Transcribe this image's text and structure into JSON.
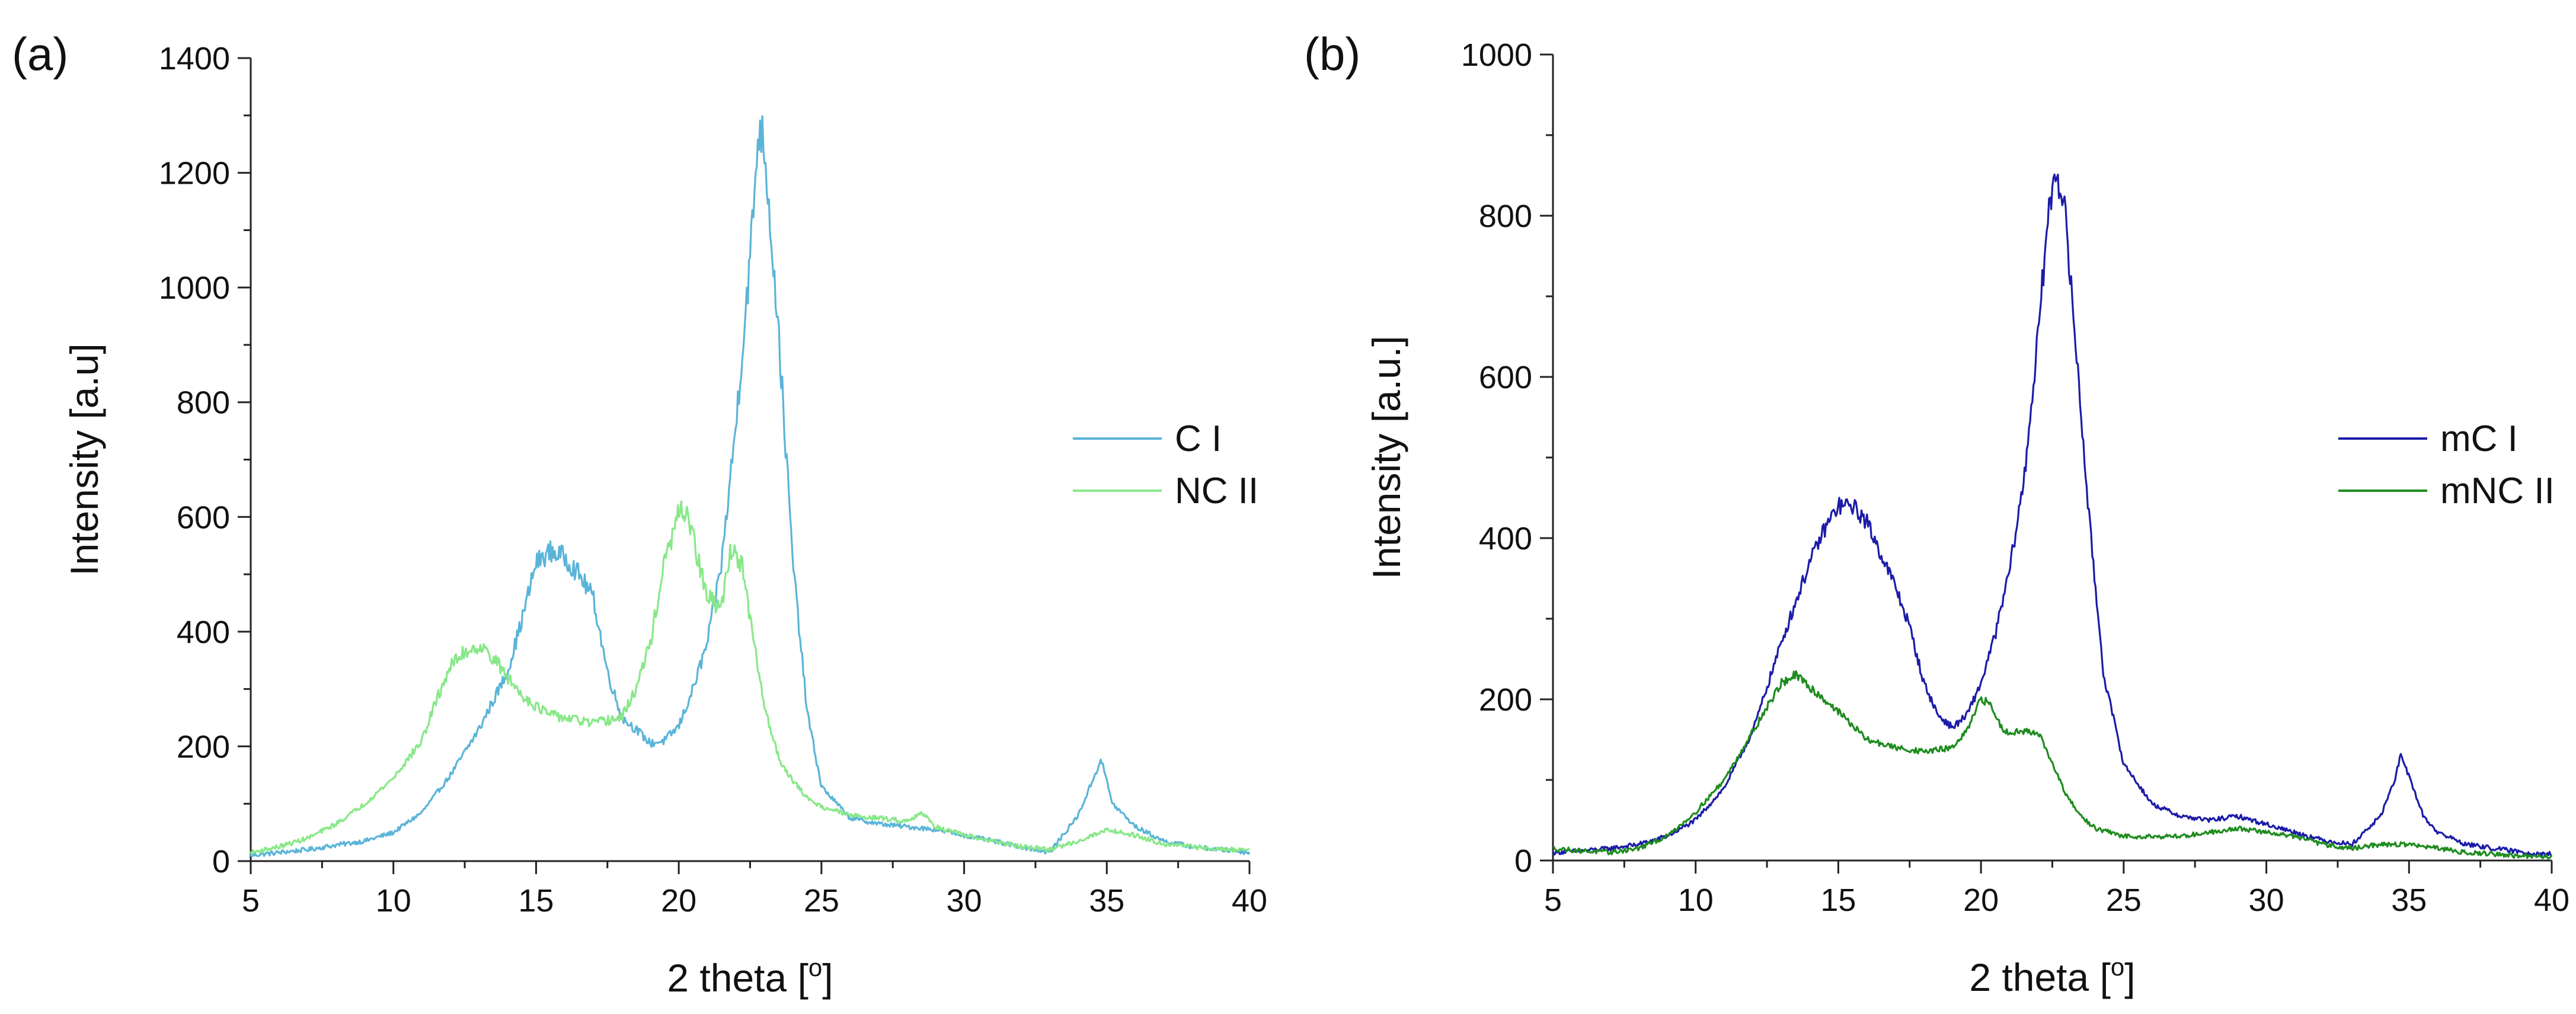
{
  "chart_data": [
    {
      "panel": "(a)",
      "type": "line",
      "xlabel": "2 theta [",
      "xlabel_sup": "o",
      "xlabel_end": "]",
      "ylabel": "Intensity [a.u]",
      "xlim": [
        5,
        40
      ],
      "ylim": [
        0,
        1400
      ],
      "xticks": [
        5,
        10,
        15,
        20,
        25,
        30,
        35,
        40
      ],
      "yticks": [
        0,
        200,
        400,
        600,
        800,
        1000,
        1200,
        1400
      ],
      "legend": "right",
      "series": [
        {
          "name": "C I",
          "color": "#5ab4d8",
          "x": [
            5,
            6,
            7,
            8,
            9,
            10,
            11,
            12,
            13,
            14,
            14.5,
            15,
            15.5,
            16,
            16.5,
            17,
            17.5,
            18,
            18.5,
            19,
            19.5,
            20,
            20.5,
            21,
            21.5,
            22,
            22.5,
            22.8,
            23,
            23.5,
            24,
            24.5,
            25,
            26,
            27,
            28,
            29,
            30,
            31,
            32,
            33,
            34,
            34.5,
            34.8,
            35.2,
            36,
            37,
            38,
            39,
            40
          ],
          "y": [
            10,
            15,
            20,
            28,
            35,
            50,
            85,
            150,
            230,
            330,
            420,
            520,
            540,
            530,
            500,
            460,
            330,
            250,
            230,
            205,
            210,
            235,
            300,
            380,
            520,
            760,
            1050,
            1280,
            1250,
            920,
            520,
            260,
            130,
            75,
            65,
            60,
            55,
            45,
            35,
            25,
            15,
            80,
            140,
            178,
            100,
            60,
            35,
            25,
            20,
            15
          ]
        },
        {
          "name": "NC II",
          "color": "#88e888",
          "x": [
            5,
            6,
            7,
            8,
            9,
            10,
            11,
            11.5,
            12,
            12.5,
            13,
            13.5,
            14,
            14.5,
            15,
            15.5,
            16,
            16.5,
            17,
            17.5,
            18,
            18.5,
            19,
            19.5,
            20,
            20.3,
            20.6,
            21,
            21.5,
            21.8,
            22.2,
            22.5,
            23,
            23.5,
            24,
            24.5,
            25,
            26,
            27,
            28,
            28.5,
            29,
            30,
            31,
            32,
            33,
            34,
            35,
            36,
            37,
            38,
            39,
            40
          ],
          "y": [
            15,
            25,
            40,
            65,
            100,
            145,
            210,
            280,
            340,
            365,
            375,
            355,
            320,
            290,
            270,
            255,
            250,
            245,
            240,
            245,
            250,
            300,
            380,
            520,
            605,
            610,
            540,
            460,
            440,
            545,
            520,
            420,
            270,
            180,
            140,
            110,
            95,
            80,
            75,
            70,
            85,
            60,
            45,
            35,
            25,
            20,
            35,
            55,
            45,
            30,
            25,
            20,
            20
          ]
        }
      ]
    },
    {
      "panel": "(b)",
      "type": "line",
      "xlabel": "2 theta [",
      "xlabel_sup": "o",
      "xlabel_end": "]",
      "ylabel": "Intensity [a.u.]",
      "xlim": [
        5,
        40
      ],
      "ylim": [
        0,
        1000
      ],
      "xticks": [
        5,
        10,
        15,
        20,
        25,
        30,
        35,
        40
      ],
      "yticks": [
        0,
        200,
        400,
        600,
        800,
        1000
      ],
      "legend": "right",
      "series": [
        {
          "name": "mC I",
          "color": "#1c1ca8",
          "x": [
            5,
            6,
            7,
            8,
            9,
            10,
            11,
            12,
            13,
            14,
            14.5,
            15,
            15.5,
            16,
            16.5,
            17,
            17.5,
            18,
            18.5,
            19,
            19.5,
            20,
            20.5,
            21,
            21.5,
            22,
            22.3,
            22.6,
            22.9,
            23.3,
            23.8,
            24.3,
            25,
            26,
            27,
            28,
            29,
            30,
            31,
            32,
            33,
            34,
            34.5,
            34.7,
            35,
            35.5,
            36,
            37,
            38,
            39,
            40
          ],
          "y": [
            10,
            12,
            15,
            20,
            30,
            50,
            90,
            160,
            270,
            370,
            410,
            440,
            440,
            420,
            380,
            340,
            290,
            220,
            180,
            165,
            180,
            220,
            280,
            360,
            470,
            650,
            780,
            860,
            820,
            650,
            420,
            230,
            120,
            70,
            55,
            50,
            55,
            45,
            35,
            25,
            20,
            55,
            100,
            130,
            105,
            55,
            35,
            20,
            15,
            10,
            8
          ]
        },
        {
          "name": "mNC II",
          "color": "#1e8c1e",
          "x": [
            5,
            6,
            7,
            8,
            9,
            10,
            11,
            12,
            12.5,
            13,
            13.5,
            14,
            15,
            16,
            17,
            18,
            19,
            19.5,
            20,
            20.3,
            20.8,
            21.5,
            22,
            22.5,
            23,
            23.5,
            24,
            25,
            26,
            27,
            28,
            29,
            30,
            31,
            32,
            33,
            34,
            35,
            36,
            37,
            38,
            39,
            40
          ],
          "y": [
            15,
            12,
            10,
            15,
            30,
            60,
            100,
            160,
            190,
            220,
            230,
            215,
            185,
            150,
            140,
            135,
            140,
            160,
            200,
            195,
            160,
            160,
            160,
            120,
            80,
            55,
            40,
            30,
            30,
            30,
            35,
            40,
            35,
            30,
            20,
            15,
            20,
            20,
            15,
            10,
            8,
            5,
            5
          ]
        }
      ]
    }
  ]
}
